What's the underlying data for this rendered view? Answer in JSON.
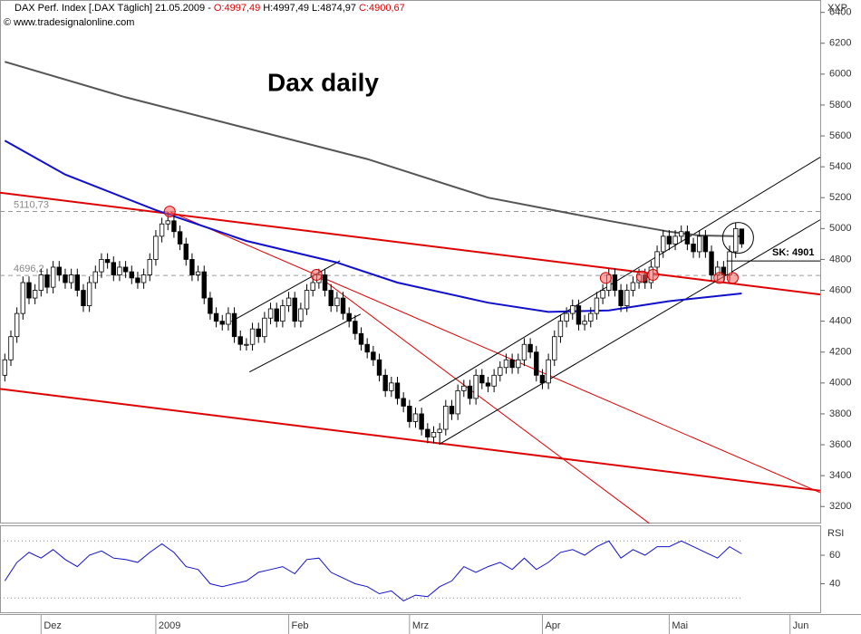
{
  "header": {
    "instrument": "DAX Perf. Index [.DAX  Täglich] 21.05.2009 -",
    "open": "O:4997,49",
    "high_low": "H:4997,49 L:4874,97",
    "close": "C:4900,67",
    "copyright": "© www.tradesignalonline.com"
  },
  "chart_data": [
    {
      "type": "candlestick",
      "title": "Dax daily",
      "axis_label": "XXP",
      "open": [
        4050,
        4150,
        4300,
        4450,
        4650,
        4550,
        4600,
        4700,
        4620,
        4750,
        4700,
        4650,
        4700,
        4600,
        4500,
        4650,
        4720,
        4800,
        4780,
        4700,
        4750,
        4720,
        4680,
        4650,
        4700,
        4800,
        4950,
        5030,
        5050,
        4980,
        4900,
        4800,
        4700,
        4720,
        4550,
        4450,
        4400,
        4380,
        4450,
        4300,
        4250,
        4250,
        4350,
        4300,
        4420,
        4480,
        4400,
        4500,
        4550,
        4400,
        4480,
        4600,
        4650,
        4700,
        4600,
        4500,
        4550,
        4450,
        4400,
        4320,
        4250,
        4200,
        4150,
        4050,
        3950,
        4000,
        3900,
        3850,
        3750,
        3800,
        3700,
        3650,
        3680,
        3700,
        3850,
        3800,
        3950,
        3980,
        3900,
        4050,
        4000,
        3980,
        4050,
        4100,
        4150,
        4100,
        4150,
        4250,
        4200,
        4050,
        4000,
        4150,
        4300,
        4400,
        4450,
        4500,
        4380,
        4400,
        4450,
        4550,
        4600,
        4700,
        4600,
        4500,
        4600,
        4650,
        4700,
        4650,
        4750,
        4850,
        4950,
        4900,
        4950,
        4980,
        4900,
        4850,
        4950,
        4850,
        4700,
        4750,
        4700,
        4850,
        4997.49
      ],
      "high": [
        4190,
        4340,
        4490,
        4690,
        4690,
        4640,
        4740,
        4740,
        4790,
        4790,
        4740,
        4740,
        4740,
        4640,
        4690,
        4760,
        4840,
        4840,
        4820,
        4790,
        4790,
        4760,
        4720,
        4740,
        4840,
        4990,
        5070,
        5110,
        5090,
        5020,
        4940,
        4840,
        4760,
        4760,
        4590,
        4490,
        4440,
        4490,
        4490,
        4340,
        4290,
        4390,
        4390,
        4460,
        4520,
        4520,
        4540,
        4590,
        4590,
        4520,
        4640,
        4690,
        4740,
        4740,
        4640,
        4590,
        4590,
        4490,
        4440,
        4360,
        4290,
        4240,
        4190,
        4090,
        4040,
        4040,
        3940,
        3890,
        3840,
        3840,
        3740,
        3720,
        3740,
        3890,
        3890,
        3990,
        4020,
        4020,
        4090,
        4090,
        4040,
        4090,
        4140,
        4190,
        4190,
        4190,
        4290,
        4290,
        4240,
        4090,
        4190,
        4340,
        4440,
        4490,
        4540,
        4540,
        4440,
        4490,
        4590,
        4640,
        4740,
        4740,
        4640,
        4640,
        4690,
        4740,
        4740,
        4790,
        4890,
        4990,
        4990,
        4990,
        5020,
        5020,
        4940,
        4990,
        4990,
        4890,
        4790,
        4790,
        4890,
        5040,
        4997.49
      ],
      "low": [
        4010,
        4110,
        4260,
        4410,
        4510,
        4510,
        4560,
        4580,
        4580,
        4660,
        4610,
        4610,
        4560,
        4460,
        4460,
        4610,
        4680,
        4740,
        4660,
        4660,
        4680,
        4640,
        4610,
        4610,
        4660,
        4760,
        4910,
        4990,
        4940,
        4860,
        4760,
        4660,
        4660,
        4510,
        4410,
        4360,
        4340,
        4340,
        4260,
        4210,
        4210,
        4210,
        4260,
        4260,
        4380,
        4360,
        4360,
        4460,
        4360,
        4360,
        4440,
        4560,
        4610,
        4560,
        4460,
        4460,
        4410,
        4360,
        4280,
        4210,
        4160,
        4110,
        4010,
        3910,
        3910,
        3860,
        3810,
        3710,
        3710,
        3660,
        3610,
        3610,
        3600,
        3660,
        3760,
        3760,
        3910,
        3860,
        3860,
        3960,
        3940,
        3940,
        4010,
        4060,
        4060,
        4060,
        4110,
        4160,
        4010,
        3960,
        3960,
        4110,
        4260,
        4360,
        4410,
        4340,
        4340,
        4360,
        4410,
        4510,
        4560,
        4560,
        4460,
        4460,
        4560,
        4610,
        4610,
        4610,
        4710,
        4810,
        4860,
        4860,
        4910,
        4860,
        4810,
        4810,
        4810,
        4660,
        4660,
        4660,
        4660,
        4810,
        4874.97
      ],
      "close": [
        4150,
        4300,
        4450,
        4650,
        4550,
        4600,
        4700,
        4620,
        4750,
        4700,
        4650,
        4700,
        4600,
        4500,
        4650,
        4720,
        4800,
        4780,
        4700,
        4750,
        4720,
        4680,
        4650,
        4700,
        4800,
        4950,
        5030,
        5050,
        4980,
        4900,
        4800,
        4700,
        4720,
        4550,
        4450,
        4400,
        4380,
        4450,
        4300,
        4250,
        4250,
        4350,
        4300,
        4420,
        4480,
        4400,
        4500,
        4550,
        4400,
        4480,
        4600,
        4650,
        4700,
        4600,
        4500,
        4550,
        4450,
        4400,
        4320,
        4250,
        4200,
        4150,
        4050,
        3950,
        4000,
        3900,
        3850,
        3750,
        3800,
        3700,
        3650,
        3680,
        3700,
        3850,
        3800,
        3950,
        3980,
        3900,
        4050,
        4000,
        3980,
        4050,
        4100,
        4150,
        4100,
        4150,
        4250,
        4200,
        4050,
        4000,
        4150,
        4300,
        4400,
        4450,
        4500,
        4380,
        4400,
        4450,
        4550,
        4600,
        4700,
        4600,
        4500,
        4600,
        4650,
        4700,
        4650,
        4750,
        4850,
        4950,
        4900,
        4950,
        4980,
        4900,
        4850,
        4950,
        4850,
        4700,
        4750,
        4700,
        4850,
        5000,
        4900.67
      ],
      "xlim": [
        -0.8,
        135
      ],
      "ylim": [
        3090,
        6480
      ],
      "yticks": [
        3200,
        3400,
        3600,
        3800,
        4000,
        4200,
        4400,
        4600,
        4800,
        5000,
        5200,
        5400,
        5600,
        5800,
        6000,
        6200,
        6400
      ],
      "xticks": [
        {
          "value": 6,
          "label": "Dez"
        },
        {
          "value": 25,
          "label": "2009"
        },
        {
          "value": 47,
          "label": "Feb"
        },
        {
          "value": 67,
          "label": "Mrz"
        },
        {
          "value": 89,
          "label": "Apr"
        },
        {
          "value": 110,
          "label": "Mai"
        },
        {
          "value": 130,
          "label": "Jun"
        }
      ],
      "lines": [
        {
          "color": "#555555",
          "x": [
            0,
            20,
            40,
            60,
            80,
            100,
            110,
            115,
            122
          ],
          "values": [
            6080,
            5850,
            5650,
            5450,
            5200,
            5050,
            4980,
            4955,
            4950
          ]
        },
        {
          "color": "#1010cc",
          "x": [
            0,
            10,
            25,
            40,
            55,
            65,
            80,
            90,
            100,
            110,
            122
          ],
          "values": [
            5570,
            5350,
            5120,
            4920,
            4780,
            4650,
            4520,
            4460,
            4470,
            4530,
            4580
          ]
        }
      ],
      "levels": [
        {
          "value": 5110.73,
          "label": "5110,73"
        },
        {
          "value": 4696.2,
          "label": "4696,2"
        }
      ],
      "trendlines": [
        {
          "color": "#e00000",
          "width": 2,
          "x": [
            -0.8,
            135
          ],
          "values": [
            5232,
            4573
          ]
        },
        {
          "color": "#e00000",
          "width": 2,
          "x": [
            -0.8,
            135
          ],
          "values": [
            3962,
            3303
          ]
        },
        {
          "color": "#e00000",
          "width": 1,
          "x": [
            27.3,
            135
          ],
          "values": [
            5110,
            3290
          ]
        },
        {
          "color": "#e00000",
          "width": 1,
          "x": [
            51.6,
            106.7
          ],
          "values": [
            4700,
            3091
          ]
        },
        {
          "color": "#000000",
          "width": 1,
          "x": [
            68.6,
            135
          ],
          "values": [
            3883,
            5462
          ]
        },
        {
          "color": "#000000",
          "width": 1,
          "x": [
            72,
            135
          ],
          "values": [
            3605,
            5057
          ]
        },
        {
          "color": "#000000",
          "width": 1,
          "x": [
            37.5,
            55.5
          ],
          "values": [
            4398,
            4791
          ]
        },
        {
          "color": "#000000",
          "width": 1,
          "x": [
            40.5,
            58.9
          ],
          "values": [
            4071,
            4446
          ]
        }
      ],
      "touch_points": {
        "color": "#ff6060",
        "x": [
          27.3,
          51.6,
          99.5,
          105.5,
          107.3,
          118.3,
          120.5
        ],
        "values": [
          5110,
          4700,
          4680,
          4690,
          4700,
          4680,
          4680
        ]
      },
      "annotation": "SK: 4901"
    },
    {
      "type": "line",
      "axis_label": "RSI",
      "color": "#1010cc",
      "x": [
        0,
        2,
        4,
        6,
        8,
        10,
        12,
        14,
        16,
        18,
        20,
        22,
        24,
        26,
        28,
        30,
        32,
        34,
        36,
        38,
        40,
        42,
        44,
        46,
        48,
        50,
        52,
        54,
        56,
        58,
        60,
        62,
        64,
        66,
        68,
        70,
        72,
        74,
        76,
        78,
        80,
        82,
        84,
        86,
        88,
        90,
        92,
        94,
        96,
        98,
        100,
        102,
        104,
        106,
        108,
        110,
        112,
        114,
        116,
        118,
        120,
        122
      ],
      "values": [
        42,
        55,
        62,
        58,
        64,
        57,
        52,
        60,
        63,
        58,
        57,
        55,
        62,
        68,
        62,
        52,
        50,
        40,
        38,
        40,
        42,
        48,
        50,
        52,
        47,
        57,
        58,
        48,
        44,
        40,
        38,
        33,
        35,
        28,
        32,
        31,
        38,
        42,
        52,
        48,
        52,
        55,
        50,
        58,
        50,
        55,
        62,
        64,
        60,
        66,
        70,
        58,
        64,
        60,
        66,
        66,
        70,
        66,
        62,
        58,
        66,
        61
      ],
      "xlim": [
        -0.8,
        135
      ],
      "ylim": [
        20,
        81
      ],
      "yticks": [
        40,
        60
      ],
      "ref_lines": [
        30,
        70
      ]
    }
  ]
}
